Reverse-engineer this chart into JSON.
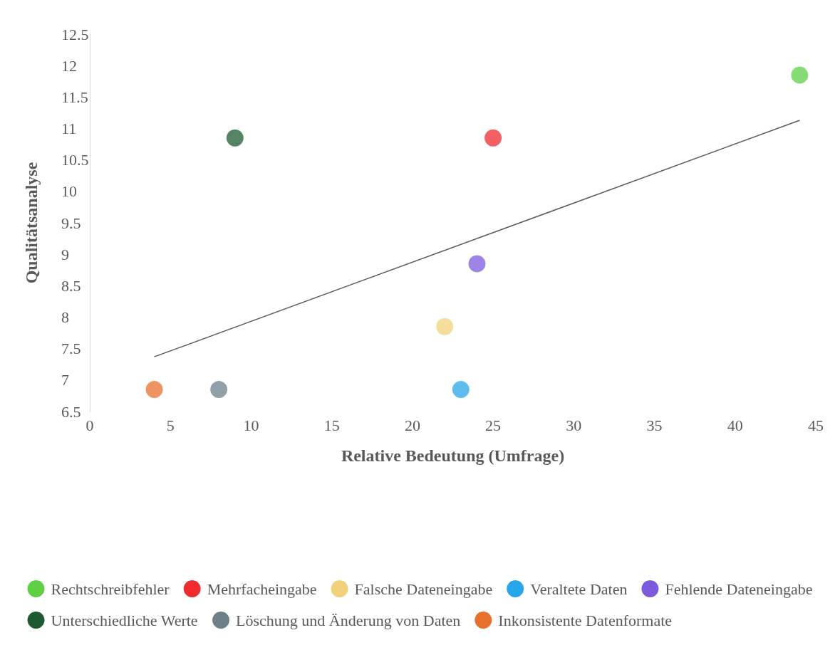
{
  "chart_data": {
    "type": "scatter",
    "xlabel": "Relative Bedeutung (Umfrage)",
    "ylabel": "Qualitätsanalyse",
    "xlim": [
      0,
      45
    ],
    "xticks": [
      0,
      5,
      10,
      15,
      20,
      25,
      30,
      35,
      40,
      45
    ],
    "ylim": [
      6.5,
      12.5
    ],
    "yticks": [
      6.5,
      7,
      7.5,
      8,
      8.5,
      9,
      9.5,
      10,
      10.5,
      11,
      11.5,
      12,
      12.5
    ],
    "grid": false,
    "legend": "bottom",
    "marker": "circle",
    "series": [
      {
        "name": "Rechtschreibfehler",
        "color": "#5fcf45",
        "x": [
          44
        ],
        "values": [
          11.85
        ]
      },
      {
        "name": "Mehrfacheingabe",
        "color": "#ee2b2f",
        "x": [
          25
        ],
        "values": [
          10.85
        ]
      },
      {
        "name": "Falsche Dateneingabe",
        "color": "#f2d17c",
        "x": [
          22
        ],
        "values": [
          7.85
        ]
      },
      {
        "name": "Veraltete Daten",
        "color": "#29a6ea",
        "x": [
          23
        ],
        "values": [
          6.85
        ]
      },
      {
        "name": "Fehlende Dateneingabe",
        "color": "#7b5bdc",
        "x": [
          24
        ],
        "values": [
          8.85
        ]
      },
      {
        "name": "Unterschiedliche Werte",
        "color": "#1e5a30",
        "x": [
          9
        ],
        "values": [
          10.85
        ]
      },
      {
        "name": "Löschung und Änderung von Daten",
        "color": "#6c8088",
        "x": [
          8
        ],
        "values": [
          6.85
        ]
      },
      {
        "name": "Inkonsistente Datenformate",
        "color": "#e8702d",
        "x": [
          4
        ],
        "values": [
          6.85
        ]
      },
      {
        "type": "line",
        "color": "#595959",
        "x": [
          4,
          44
        ],
        "values": [
          7.37,
          11.13
        ],
        "marker": "none",
        "line_style": "solid"
      }
    ]
  }
}
